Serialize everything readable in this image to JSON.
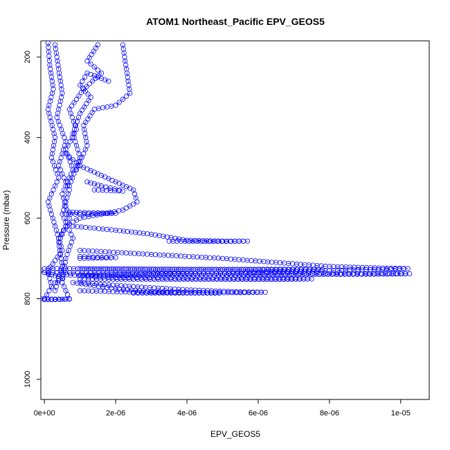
{
  "chart_data": {
    "type": "scatter",
    "title": "ATOM1 Northeast_Pacific EPV_GEOS5",
    "xlabel": "EPV_GEOS5",
    "ylabel": "Pressure (mbar)",
    "xlim": [
      -1e-07,
      1.08e-05
    ],
    "ylim": [
      1050,
      160
    ],
    "y_reversed": true,
    "grid": false,
    "legend": "none",
    "marker": "open-circle",
    "color": "#0000ff",
    "x_ticks": [
      {
        "value": 0,
        "label": "0e+00"
      },
      {
        "value": 2e-06,
        "label": "2e-06"
      },
      {
        "value": 4e-06,
        "label": "4e-06"
      },
      {
        "value": 6e-06,
        "label": "6e-06"
      },
      {
        "value": 8e-06,
        "label": "8e-06"
      },
      {
        "value": 1e-05,
        "label": "1e-05"
      }
    ],
    "y_ticks": [
      {
        "value": 200,
        "label": "200"
      },
      {
        "value": 400,
        "label": "400"
      },
      {
        "value": 600,
        "label": "600"
      },
      {
        "value": 800,
        "label": "800"
      },
      {
        "value": 1000,
        "label": "1000"
      }
    ],
    "series": [
      {
        "points": [
          [
            1e-07,
            165
          ],
          [
            1.5e-07,
            220
          ],
          [
            2.5e-07,
            280
          ],
          [
            1e-07,
            330
          ],
          [
            3e-07,
            400
          ],
          [
            2e-07,
            450
          ],
          [
            4e-07,
            500
          ],
          [
            1e-07,
            560
          ],
          [
            3e-07,
            620
          ],
          [
            5e-07,
            680
          ],
          [
            1e-07,
            730
          ],
          [
            2e-07,
            770
          ],
          [
            0.0,
            800
          ]
        ]
      },
      {
        "points": [
          [
            3e-07,
            170
          ],
          [
            4e-07,
            230
          ],
          [
            5e-07,
            290
          ],
          [
            3.5e-07,
            350
          ],
          [
            6e-07,
            410
          ],
          [
            4e-07,
            470
          ],
          [
            7e-07,
            530
          ],
          [
            5e-07,
            590
          ],
          [
            8e-07,
            650
          ],
          [
            6e-07,
            700
          ],
          [
            5e-07,
            760
          ],
          [
            7e-07,
            800
          ]
        ]
      },
      {
        "points": [
          [
            1.5e-06,
            170
          ],
          [
            1.2e-06,
            210
          ],
          [
            1.6e-06,
            240
          ],
          [
            1.1e-06,
            280
          ],
          [
            7e-07,
            330
          ],
          [
            9e-07,
            380
          ],
          [
            6e-07,
            430
          ],
          [
            8e-07,
            480
          ],
          [
            5e-07,
            540
          ],
          [
            7e-07,
            600
          ],
          [
            4e-07,
            660
          ],
          [
            5e-07,
            720
          ],
          [
            3e-07,
            780
          ]
        ]
      },
      {
        "points": [
          [
            2.2e-06,
            170
          ],
          [
            2.3e-06,
            230
          ],
          [
            2.4e-06,
            290
          ],
          [
            2e-06,
            320
          ],
          [
            1.4e-06,
            330
          ],
          [
            1.1e-06,
            370
          ],
          [
            1.2e-06,
            420
          ],
          [
            9e-07,
            480
          ]
        ]
      },
      {
        "points": [
          [
            1.8e-06,
            260
          ],
          [
            1.2e-06,
            240
          ],
          [
            1e-06,
            270
          ],
          [
            1.3e-06,
            300
          ],
          [
            1e-06,
            340
          ],
          [
            8e-07,
            390
          ],
          [
            1e-06,
            450
          ],
          [
            7e-07,
            520
          ]
        ]
      },
      {
        "points": [
          [
            1.2e-06,
            510
          ],
          [
            1.6e-06,
            520
          ],
          [
            2.1e-06,
            530
          ],
          [
            2.2e-06,
            533
          ],
          [
            1.4e-06,
            530
          ]
        ]
      },
      {
        "points": [
          [
            6e-07,
            440
          ],
          [
            1e-06,
            470
          ],
          [
            1.5e-06,
            490
          ],
          [
            2e-06,
            510
          ],
          [
            2.5e-06,
            530
          ],
          [
            2.6e-06,
            560
          ],
          [
            2.2e-06,
            580
          ],
          [
            1.6e-06,
            590
          ],
          [
            1e-06,
            600
          ],
          [
            6e-07,
            620
          ],
          [
            4e-07,
            650
          ]
        ]
      },
      {
        "points": [
          [
            7e-07,
            585
          ],
          [
            1e-06,
            586
          ],
          [
            1.5e-06,
            587
          ],
          [
            2e-06,
            588
          ],
          [
            1e-06,
            590
          ],
          [
            6e-07,
            590
          ]
        ]
      },
      {
        "points": [
          [
            8e-07,
            620
          ],
          [
            2e-06,
            630
          ],
          [
            3e-06,
            640
          ],
          [
            4e-06,
            655
          ],
          [
            5e-06,
            657
          ],
          [
            5.7e-06,
            657
          ],
          [
            4.5e-06,
            658
          ],
          [
            3.5e-06,
            657
          ]
        ]
      },
      {
        "points": [
          [
            1e-06,
            680
          ],
          [
            3e-06,
            690
          ],
          [
            5e-06,
            700
          ],
          [
            6.5e-06,
            710
          ],
          [
            8e-06,
            720
          ],
          [
            9.5e-06,
            724
          ],
          [
            1.02e-05,
            725
          ],
          [
            9.6e-06,
            727
          ],
          [
            8e-06,
            730
          ],
          [
            6e-06,
            735
          ],
          [
            4e-06,
            738
          ],
          [
            2e-06,
            740
          ],
          [
            1e-06,
            742
          ]
        ]
      },
      {
        "points": [
          [
            0.0,
            725
          ],
          [
            2e-06,
            726
          ],
          [
            4e-06,
            727
          ],
          [
            6e-06,
            727
          ],
          [
            7.8e-06,
            727
          ],
          [
            5e-06,
            728
          ],
          [
            3e-06,
            727
          ],
          [
            1e-06,
            726
          ]
        ]
      },
      {
        "points": [
          [
            1e-06,
            695
          ],
          [
            1.5e-06,
            697
          ],
          [
            2e-06,
            698
          ],
          [
            1.6e-06,
            699
          ],
          [
            1e-06,
            700
          ]
        ]
      },
      {
        "points": [
          [
            0.0,
            735
          ],
          [
            2e-06,
            736
          ],
          [
            4e-06,
            737
          ],
          [
            6e-06,
            738
          ],
          [
            8e-06,
            738
          ],
          [
            9e-06,
            738
          ],
          [
            1.025e-05,
            738
          ],
          [
            9.5e-06,
            739
          ],
          [
            7e-06,
            740
          ],
          [
            5e-06,
            741
          ],
          [
            3e-06,
            741
          ],
          [
            1e-06,
            742
          ]
        ]
      },
      {
        "points": [
          [
            5e-07,
            740
          ],
          [
            2e-06,
            748
          ],
          [
            4e-06,
            750
          ],
          [
            6e-06,
            751
          ],
          [
            7.5e-06,
            751
          ],
          [
            6.5e-06,
            752
          ],
          [
            4.5e-06,
            752
          ],
          [
            2.5e-06,
            752
          ],
          [
            1e-06,
            751
          ]
        ]
      },
      {
        "points": [
          [
            1e-06,
            760
          ],
          [
            2.5e-06,
            770
          ],
          [
            4e-06,
            778
          ],
          [
            5.5e-06,
            783
          ],
          [
            6.2e-06,
            784
          ],
          [
            5.5e-06,
            785
          ],
          [
            4e-06,
            785
          ],
          [
            2.5e-06,
            784
          ],
          [
            1e-06,
            780
          ]
        ]
      },
      {
        "points": [
          [
            8e-07,
            760
          ],
          [
            2e-06,
            775
          ],
          [
            3e-06,
            782
          ],
          [
            4e-06,
            785
          ],
          [
            4.9e-06,
            786
          ],
          [
            4e-06,
            786
          ],
          [
            3e-06,
            786
          ],
          [
            2.5e-06,
            786
          ]
        ]
      },
      {
        "points": [
          [
            -1e-07,
            800
          ],
          [
            2e-07,
            801
          ],
          [
            5e-07,
            801
          ],
          [
            7e-07,
            801
          ],
          [
            3e-07,
            802
          ],
          [
            0.0,
            802
          ]
        ]
      },
      {
        "points": [
          [
            -1e-07,
            730
          ],
          [
            0.0,
            735
          ],
          [
            2e-07,
            740
          ],
          [
            4e-07,
            745
          ],
          [
            5e-07,
            750
          ],
          [
            3e-07,
            760
          ],
          [
            2e-07,
            770
          ]
        ]
      }
    ]
  }
}
